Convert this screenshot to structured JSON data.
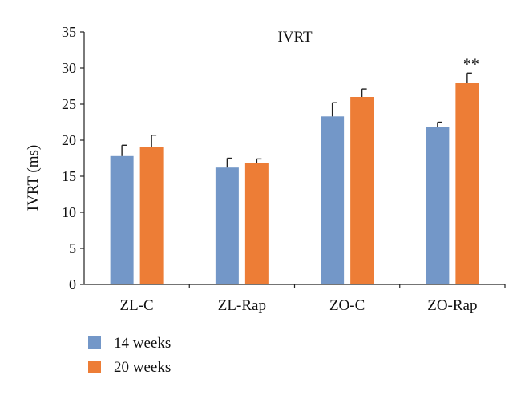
{
  "chart_data": {
    "type": "bar",
    "title": "IVRT",
    "ylabel": "IVRT (ms)",
    "xlabel": "",
    "categories": [
      "ZL-C",
      "ZL-Rap",
      "ZO-C",
      "ZO-Rap"
    ],
    "ylim": [
      0,
      35
    ],
    "yticks": [
      0,
      5,
      10,
      15,
      20,
      25,
      30,
      35
    ],
    "grid": false,
    "legend_position": "bottom-left",
    "series": [
      {
        "name": "14 weeks",
        "color": "#7397c8",
        "values": [
          17.8,
          16.2,
          23.3,
          21.8
        ],
        "errors": [
          1.5,
          1.3,
          1.9,
          0.7
        ]
      },
      {
        "name": "20 weeks",
        "color": "#ed7d36",
        "values": [
          19.0,
          16.8,
          26.0,
          28.0
        ],
        "errors": [
          1.7,
          0.6,
          1.1,
          1.3
        ]
      }
    ],
    "annotations": [
      {
        "category_index": 3,
        "series_index": 1,
        "text": "**"
      }
    ]
  }
}
